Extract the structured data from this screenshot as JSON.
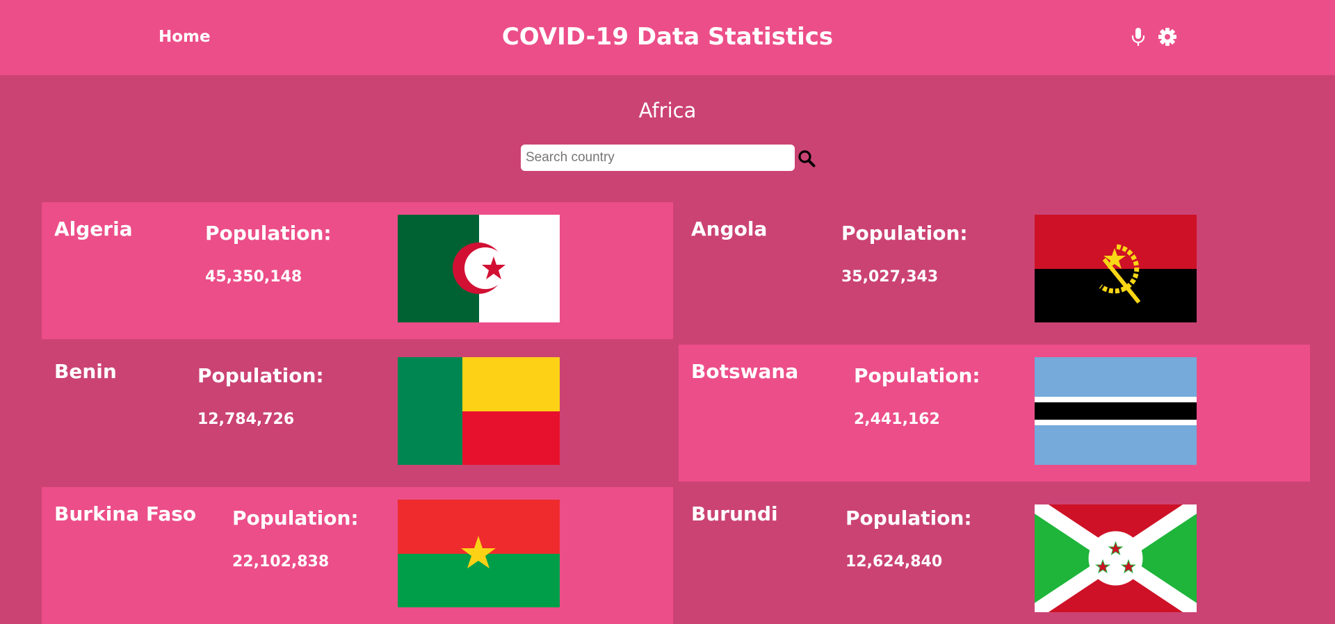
{
  "header": {
    "home_label": "Home",
    "title": "COVID-19 Data Statistics",
    "icons": [
      "microphone-icon",
      "gear-icon"
    ]
  },
  "region": {
    "title": "Africa"
  },
  "search": {
    "placeholder": "Search country",
    "value": "",
    "icon": "search-icon"
  },
  "countries": [
    {
      "name": "Algeria",
      "population_label": "Population:",
      "population": "45,350,148",
      "flag": "algeria-flag"
    },
    {
      "name": "Angola",
      "population_label": "Population:",
      "population": "35,027,343",
      "flag": "angola-flag"
    },
    {
      "name": "Benin",
      "population_label": "Population:",
      "population": "12,784,726",
      "flag": "benin-flag"
    },
    {
      "name": "Botswana",
      "population_label": "Population:",
      "population": "2,441,162",
      "flag": "botswana-flag"
    },
    {
      "name": "Burkina Faso",
      "population_label": "Population:",
      "population": "22,102,838",
      "flag": "burkina-faso-flag"
    },
    {
      "name": "Burundi",
      "population_label": "Population:",
      "population": "12,624,840",
      "flag": "burundi-flag"
    }
  ],
  "colors": {
    "header_bg": "#ec4e89",
    "page_bg": "#cb4373",
    "card_highlight": "#ec4e89"
  }
}
